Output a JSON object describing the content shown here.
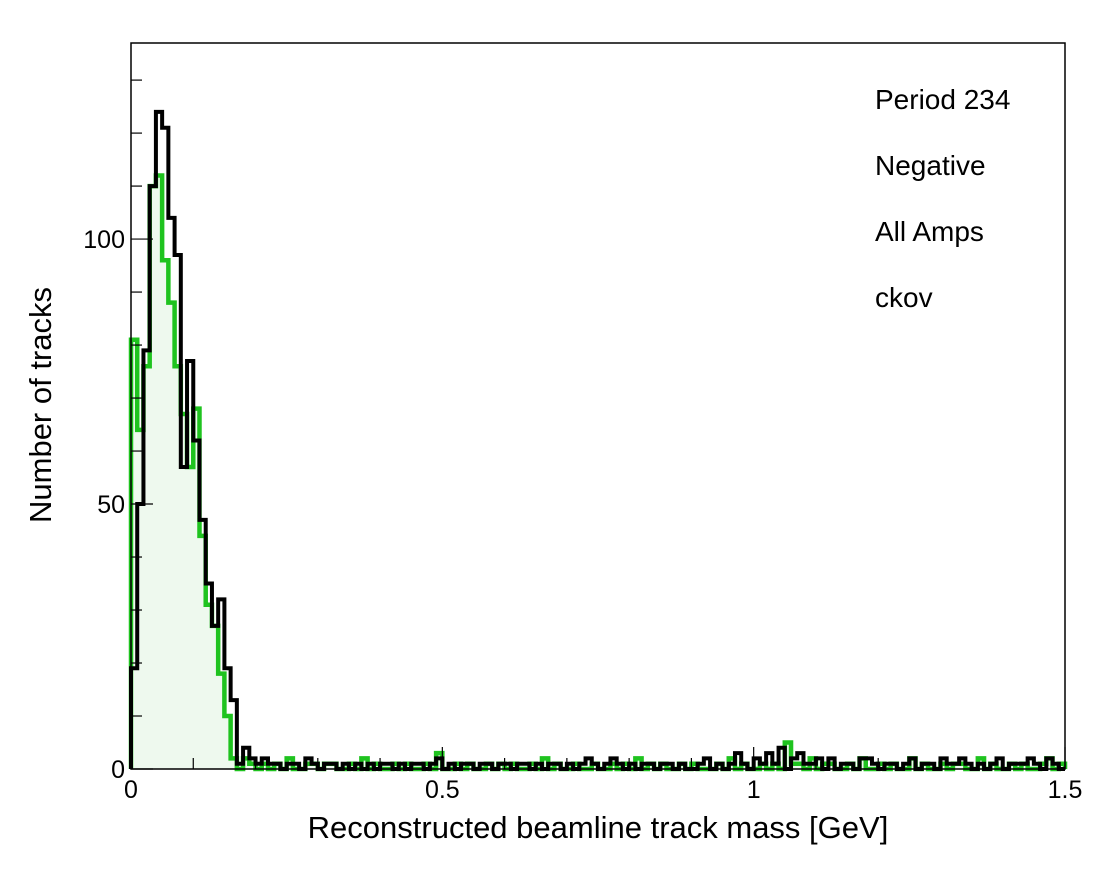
{
  "chart_data": {
    "type": "histogram",
    "xlabel": "Reconstructed beamline track mass [GeV]",
    "ylabel": "Number of tracks",
    "xlim": [
      0,
      1.5
    ],
    "ylim": [
      0,
      137
    ],
    "bin_width": 0.01,
    "x_ticks": [
      {
        "value": 0,
        "label": "0"
      },
      {
        "value": 0.5,
        "label": "0.5"
      },
      {
        "value": 1,
        "label": "1"
      },
      {
        "value": 1.5,
        "label": "1.5"
      }
    ],
    "y_ticks": [
      {
        "value": 0,
        "label": "0"
      },
      {
        "value": 50,
        "label": "50"
      },
      {
        "value": 100,
        "label": "100"
      }
    ],
    "annotations": [
      "Period 234",
      "Negative",
      "All Amps",
      "ckov"
    ],
    "grid": false,
    "series": [
      {
        "style": "filled-step",
        "color": "#1fc31f",
        "fill": "#eef9ee",
        "values": [
          81,
          64,
          76,
          110,
          112,
          96,
          88,
          76,
          67,
          57,
          68,
          44,
          31,
          27,
          18,
          10,
          2,
          0,
          2,
          1,
          0,
          1,
          0,
          1,
          0,
          2,
          0,
          0,
          1,
          1,
          0,
          1,
          1,
          0,
          0,
          1,
          0,
          2,
          0,
          1,
          0,
          0,
          1,
          0,
          1,
          0,
          0,
          1,
          0,
          3,
          0,
          0,
          1,
          0,
          1,
          0,
          0,
          1,
          0,
          1,
          0,
          1,
          0,
          0,
          1,
          0,
          2,
          0,
          1,
          0,
          0,
          1,
          0,
          0,
          1,
          0,
          0,
          1,
          0,
          1,
          0,
          2,
          0,
          1,
          0,
          1,
          0,
          0,
          1,
          0,
          1,
          0,
          0,
          0,
          1,
          0,
          2,
          0,
          1,
          0,
          0,
          1,
          0,
          1,
          0,
          5,
          1,
          1,
          0,
          2,
          0,
          1,
          1,
          0,
          0,
          1,
          0,
          2,
          0,
          0,
          1,
          0,
          1,
          0,
          0,
          2,
          0,
          1,
          0,
          0,
          1,
          0,
          1,
          1,
          0,
          0,
          2,
          0,
          1,
          0,
          0,
          1,
          0,
          1,
          0,
          0,
          1,
          2,
          0,
          1
        ]
      },
      {
        "style": "step",
        "color": "#000000",
        "values": [
          19,
          50,
          79,
          110,
          124,
          121,
          104,
          97,
          57,
          77,
          62,
          47,
          35,
          27,
          32,
          19,
          13,
          1,
          4,
          2,
          1,
          2,
          1,
          1,
          0,
          1,
          1,
          0,
          2,
          1,
          0,
          1,
          1,
          0,
          1,
          0,
          1,
          0,
          1,
          0,
          1,
          1,
          0,
          1,
          0,
          1,
          1,
          0,
          1,
          2,
          0,
          1,
          0,
          1,
          1,
          0,
          1,
          1,
          0,
          1,
          1,
          0,
          1,
          1,
          0,
          1,
          0,
          1,
          1,
          0,
          1,
          0,
          1,
          2,
          1,
          0,
          1,
          2,
          1,
          0,
          1,
          0,
          1,
          1,
          0,
          1,
          1,
          0,
          1,
          0,
          0,
          1,
          2,
          0,
          1,
          0,
          1,
          3,
          1,
          0,
          2,
          1,
          3,
          1,
          4,
          0,
          2,
          3,
          1,
          1,
          2,
          0,
          2,
          0,
          1,
          1,
          0,
          2,
          2,
          1,
          0,
          1,
          1,
          0,
          1,
          2,
          0,
          1,
          1,
          0,
          2,
          1,
          1,
          2,
          1,
          0,
          1,
          0,
          1,
          2,
          0,
          1,
          1,
          1,
          2,
          1,
          0,
          2,
          1,
          0
        ]
      }
    ]
  }
}
